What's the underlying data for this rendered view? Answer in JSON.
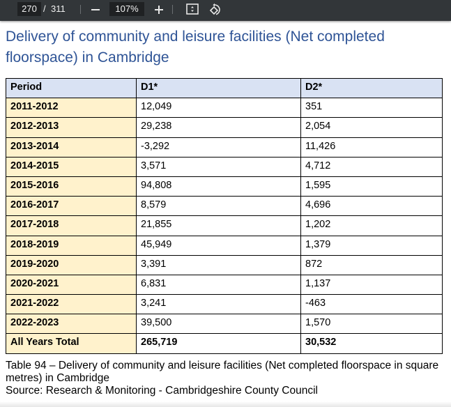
{
  "toolbar": {
    "current_page": "270",
    "page_separator": "/",
    "total_pages": "311",
    "zoom_level": "107%",
    "icons": {
      "zoom_out": "minus-icon",
      "zoom_in": "plus-icon",
      "fit": "fit-to-page-icon",
      "rotate": "rotate-icon"
    }
  },
  "document": {
    "title": "Delivery of community and leisure facilities (Net completed floorspace) in Cambridge",
    "table": {
      "headers": [
        "Period",
        "D1*",
        "D2*"
      ],
      "rows": [
        [
          "2011-2012",
          "12,049",
          "351"
        ],
        [
          "2012-2013",
          "29,238",
          "2,054"
        ],
        [
          "2013-2014",
          "-3,292",
          "11,426"
        ],
        [
          "2014-2015",
          "3,571",
          "4,712"
        ],
        [
          "2015-2016",
          "94,808",
          "1,595"
        ],
        [
          "2016-2017",
          "8,579",
          "4,696"
        ],
        [
          "2017-2018",
          "21,855",
          "1,202"
        ],
        [
          "2018-2019",
          "45,949",
          "1,379"
        ],
        [
          "2019-2020",
          "3,391",
          "872"
        ],
        [
          "2020-2021",
          "6,831",
          "1,137"
        ],
        [
          "2021-2022",
          "3,241",
          "-463"
        ],
        [
          "2022-2023",
          "39,500",
          "1,570"
        ]
      ],
      "total": [
        "All Years Total",
        "265,719",
        "30,532"
      ]
    },
    "caption_line1": "Table 94 – Delivery of community and leisure facilities (Net completed floorspace in square metres) in Cambridge",
    "caption_line2": "Source: Research & Monitoring - Cambridgeshire County Council"
  },
  "colors": {
    "title": "#2f5496",
    "header_fill": "#d9e2f3",
    "period_fill": "#fff2cc",
    "toolbar_bg": "#323639"
  }
}
